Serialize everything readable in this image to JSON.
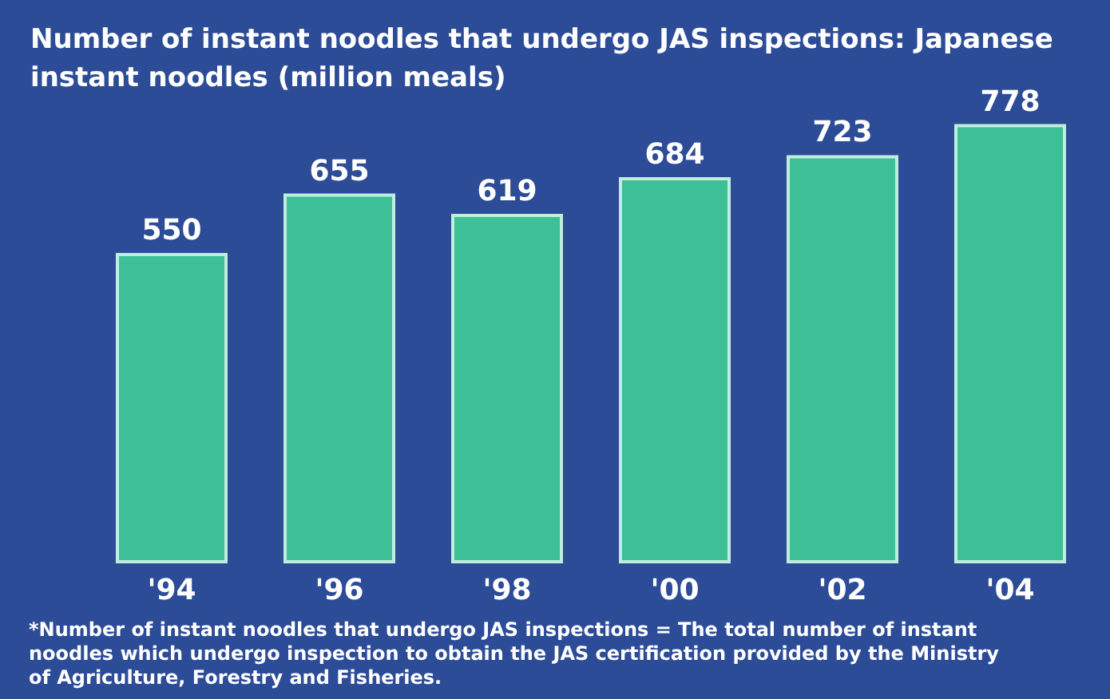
{
  "chart_data": {
    "type": "bar",
    "title": "Number of instant noodles that undergo JAS inspections: Japanese\ninstant noodles (million meals)",
    "categories": [
      "'94",
      "'96",
      "'98",
      "'00",
      "'02",
      "'04"
    ],
    "values": [
      550,
      655,
      619,
      684,
      723,
      778
    ],
    "color": "#3dbf97",
    "data_labels": true,
    "annotations": [
      "*Number of instant noodles that undergo JAS inspections = The total number of instant\nnoodles which undergo inspection to obtain the JAS certification provided by the Ministry\nof Agriculture, Forestry and Fisheries."
    ]
  }
}
